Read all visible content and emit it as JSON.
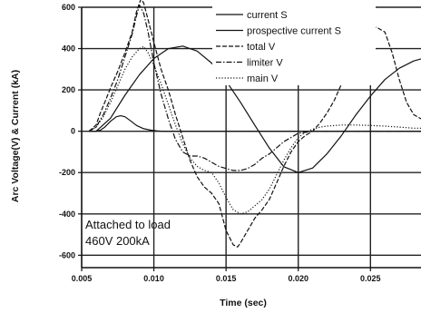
{
  "chart_data": {
    "type": "line",
    "title": "",
    "xlabel": "Time (sec)",
    "ylabel": "Arc Voltage(V) & Current (kA)",
    "xlim": [
      0.005,
      0.0285
    ],
    "ylim": [
      -660,
      600
    ],
    "xticks": [
      0.005,
      0.01,
      0.015,
      0.02,
      0.025
    ],
    "xtick_labels": [
      "0.005",
      "0.010",
      "0.015",
      "0.020",
      "0.025"
    ],
    "yticks": [
      -600,
      -400,
      -200,
      0,
      200,
      400,
      600
    ],
    "ytick_labels": [
      "-600",
      "-400",
      "-200",
      "0",
      "200",
      "400",
      "600"
    ],
    "grid": true,
    "legend_position": "top-right",
    "annotation_lines": [
      "Attached to load",
      "460V 200kA"
    ],
    "series": [
      {
        "name": "current S",
        "style": "solid",
        "color": "#111111",
        "x": [
          0.0055,
          0.006,
          0.0063,
          0.0066,
          0.007,
          0.0074,
          0.0077,
          0.008,
          0.0084,
          0.0088,
          0.0093,
          0.0098,
          0.0102,
          0.0106,
          0.011,
          0.0285
        ],
        "y": [
          0,
          0,
          5,
          20,
          48,
          70,
          75,
          70,
          50,
          28,
          12,
          5,
          2,
          0,
          0,
          0
        ]
      },
      {
        "name": "prospective current S",
        "style": "solid",
        "color": "#111111",
        "x": [
          0.006,
          0.007,
          0.008,
          0.009,
          0.01,
          0.011,
          0.012,
          0.013,
          0.014,
          0.015,
          0.016,
          0.017,
          0.018,
          0.019,
          0.02,
          0.021,
          0.022,
          0.023,
          0.024,
          0.025,
          0.026,
          0.027,
          0.028,
          0.0285
        ],
        "y": [
          0,
          63,
          174,
          274,
          352,
          400,
          412,
          388,
          330,
          244,
          140,
          28,
          -82,
          -172,
          -200,
          -178,
          -108,
          -20,
          80,
          170,
          250,
          305,
          340,
          350
        ]
      },
      {
        "name": "total V",
        "style": "dashed",
        "color": "#111111",
        "x": [
          0.0055,
          0.006,
          0.0063,
          0.0066,
          0.007,
          0.0075,
          0.008,
          0.0085,
          0.0088,
          0.0091,
          0.0093,
          0.0096,
          0.01,
          0.0105,
          0.011,
          0.0115,
          0.012,
          0.0125,
          0.013,
          0.0135,
          0.014,
          0.0145,
          0.015,
          0.0155,
          0.0158,
          0.016,
          0.0165,
          0.017,
          0.0175,
          0.018,
          0.0185,
          0.019,
          0.0195,
          0.02,
          0.0205,
          0.021,
          0.0215,
          0.022,
          0.0225,
          0.023,
          0.0235,
          0.024,
          0.0243,
          0.0247,
          0.025,
          0.0255,
          0.026,
          0.0265,
          0.027,
          0.0275,
          0.028,
          0.0285
        ],
        "y": [
          0,
          30,
          90,
          140,
          210,
          290,
          380,
          480,
          580,
          640,
          620,
          540,
          430,
          300,
          200,
          80,
          -30,
          -140,
          -220,
          -270,
          -300,
          -350,
          -480,
          -550,
          -560,
          -540,
          -480,
          -420,
          -380,
          -330,
          -250,
          -170,
          -100,
          -50,
          -20,
          0,
          40,
          90,
          150,
          230,
          330,
          440,
          490,
          510,
          510,
          500,
          480,
          380,
          250,
          140,
          80,
          60
        ]
      },
      {
        "name": "limiter V",
        "style": "dashdot",
        "color": "#111111",
        "x": [
          0.0055,
          0.006,
          0.0065,
          0.007,
          0.0075,
          0.008,
          0.0085,
          0.0088,
          0.009,
          0.0093,
          0.0096,
          0.01,
          0.0105,
          0.011,
          0.0115,
          0.012,
          0.0125,
          0.013,
          0.0135,
          0.014,
          0.0145,
          0.015,
          0.0155,
          0.016,
          0.0165,
          0.017,
          0.0175,
          0.018,
          0.0185,
          0.019,
          0.0195,
          0.02,
          0.021,
          0.022,
          0.023,
          0.024,
          0.025,
          0.026,
          0.027,
          0.028,
          0.0285
        ],
        "y": [
          0,
          20,
          80,
          160,
          250,
          360,
          470,
          560,
          610,
          570,
          480,
          330,
          180,
          60,
          -40,
          -100,
          -120,
          -120,
          -130,
          -150,
          -170,
          -180,
          -190,
          -190,
          -180,
          -160,
          -130,
          -110,
          -80,
          -50,
          -30,
          -10,
          0,
          0,
          0,
          0,
          0,
          0,
          0,
          0,
          0
        ]
      },
      {
        "name": "main V",
        "style": "dotted",
        "color": "#111111",
        "x": [
          0.0055,
          0.006,
          0.0065,
          0.007,
          0.0075,
          0.008,
          0.0085,
          0.009,
          0.0093,
          0.0096,
          0.01,
          0.0105,
          0.011,
          0.0115,
          0.012,
          0.0125,
          0.013,
          0.0135,
          0.014,
          0.0145,
          0.015,
          0.0155,
          0.016,
          0.0165,
          0.017,
          0.0175,
          0.018,
          0.0185,
          0.019,
          0.0195,
          0.02,
          0.0205,
          0.021,
          0.0215,
          0.022,
          0.023,
          0.024,
          0.025,
          0.026,
          0.027,
          0.028,
          0.0285
        ],
        "y": [
          0,
          20,
          70,
          140,
          220,
          300,
          360,
          400,
          410,
          380,
          320,
          230,
          130,
          30,
          -60,
          -130,
          -170,
          -190,
          -200,
          -250,
          -320,
          -380,
          -400,
          -390,
          -360,
          -330,
          -280,
          -210,
          -140,
          -80,
          -30,
          -5,
          10,
          20,
          25,
          30,
          30,
          28,
          25,
          20,
          15,
          15
        ]
      }
    ]
  }
}
